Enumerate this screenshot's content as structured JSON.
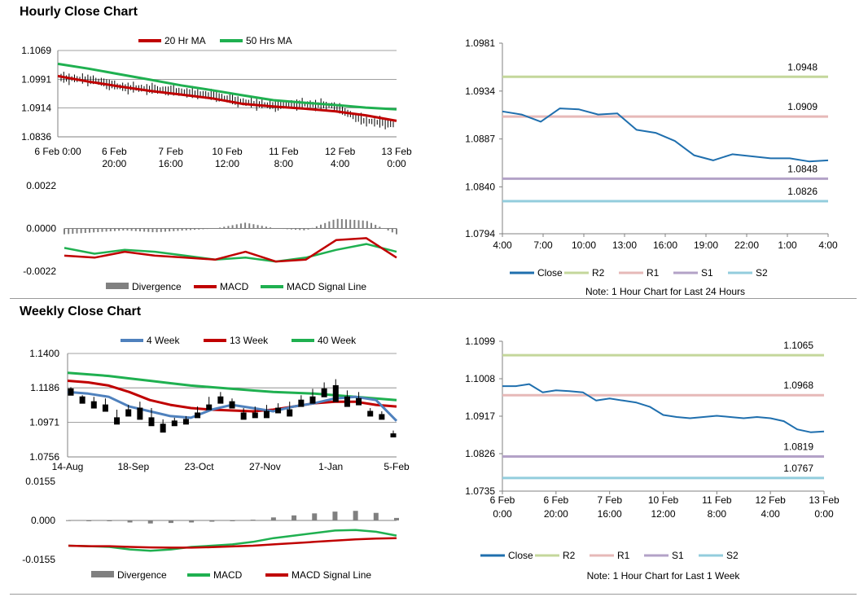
{
  "sections": {
    "hourly_title": "Hourly Close Chart",
    "weekly_title": "Weekly Close Chart"
  },
  "colors": {
    "red": "#c00000",
    "green": "#1fb050",
    "blue": "#4f81bd",
    "gray": "#808080",
    "close": "#1f6fae",
    "r2": "#c4d79b",
    "r1": "#e6b9b8",
    "s1": "#b3a2c7",
    "s2": "#93cddd"
  },
  "chart_data": [
    {
      "id": "hourly_price",
      "type": "candlestick",
      "title": "",
      "legend": [
        "20 Hr MA",
        "50 Hrs MA"
      ],
      "ylim": [
        1.0836,
        1.1069
      ],
      "yticks": [
        "1.1069",
        "1.0991",
        "1.0914",
        "1.0836"
      ],
      "xticks": [
        [
          "6 Feb 0:00"
        ],
        [
          "6 Feb",
          "20:00"
        ],
        [
          "7 Feb",
          "16:00"
        ],
        [
          "10 Feb",
          "12:00"
        ],
        [
          "11 Feb",
          "8:00"
        ],
        [
          "12 Feb",
          "4:00"
        ],
        [
          "13 Feb",
          "0:00"
        ]
      ],
      "n": 125,
      "ma20": [
        1.1,
        1.0985,
        1.0972,
        1.096,
        1.095,
        1.094,
        1.0925,
        1.0918,
        1.0912,
        1.0905,
        1.0894,
        1.0879
      ],
      "ma50": [
        1.1033,
        1.102,
        1.1005,
        1.099,
        1.0975,
        1.0962,
        1.0948,
        1.0935,
        1.0928,
        1.0922,
        1.0915,
        1.091
      ],
      "close": [
        1.0995,
        1.099,
        1.097,
        1.0965,
        1.0958,
        1.0948,
        1.093,
        1.092,
        1.0925,
        1.092,
        1.088,
        1.087
      ]
    },
    {
      "id": "hourly_macd",
      "type": "line",
      "legend": [
        "Divergence",
        "MACD",
        "MACD Signal Line"
      ],
      "ylim": [
        -0.0022,
        0.0022
      ],
      "yticks": [
        "0.0022",
        "0.0000",
        "-0.0022"
      ],
      "macd": [
        -0.0014,
        -0.0015,
        -0.0012,
        -0.0014,
        -0.0015,
        -0.0016,
        -0.0012,
        -0.0017,
        -0.0016,
        -0.0006,
        -0.0005,
        -0.0015
      ],
      "signal": [
        -0.001,
        -0.0013,
        -0.0011,
        -0.0012,
        -0.0014,
        -0.0016,
        -0.0015,
        -0.0017,
        -0.0015,
        -0.0011,
        -0.0008,
        -0.0012
      ],
      "divergence": [
        -0.0003,
        -0.0002,
        -0.0001,
        -0.0002,
        -0.0001,
        0.0,
        0.0003,
        0.0,
        -0.0001,
        0.0005,
        0.0004,
        -0.0003
      ]
    },
    {
      "id": "hourly_pivot",
      "type": "line",
      "ylim": [
        1.0794,
        1.0981
      ],
      "yticks": [
        "1.0981",
        "1.0934",
        "1.0887",
        "1.0840",
        "1.0794"
      ],
      "xticks": [
        "4:00",
        "7:00",
        "10:00",
        "13:00",
        "16:00",
        "19:00",
        "22:00",
        "1:00",
        "4:00"
      ],
      "close": [
        1.0914,
        1.0911,
        1.0904,
        1.0917,
        1.0916,
        1.0911,
        1.0912,
        1.0896,
        1.0893,
        1.0885,
        1.0871,
        1.0866,
        1.0872,
        1.087,
        1.0868,
        1.0868,
        1.0865,
        1.0866
      ],
      "levels": {
        "R2": 1.0948,
        "R1": 1.0909,
        "S1": 1.0848,
        "S2": 1.0826
      },
      "level_labels": {
        "R2": "1.0948",
        "R1": "1.0909",
        "S1": "1.0848",
        "S2": "1.0826"
      },
      "legend": [
        "Close",
        "R2",
        "R1",
        "S1",
        "S2"
      ],
      "note": "Note: 1 Hour Chart for Last 24 Hours"
    },
    {
      "id": "weekly_price",
      "type": "candlestick",
      "legend": [
        "4 Week",
        "13 Week",
        "40 Week"
      ],
      "ylim": [
        1.0756,
        1.14
      ],
      "yticks": [
        "1.1400",
        "1.1186",
        "1.0971",
        "1.0756"
      ],
      "xticks": [
        "14-Aug",
        "18-Sep",
        "23-Oct",
        "27-Nov",
        "1-Jan",
        "5-Feb"
      ],
      "candles": [
        [
          1.118,
          1.119,
          1.115,
          1.114
        ],
        [
          1.113,
          1.114,
          1.11,
          1.109
        ],
        [
          1.11,
          1.113,
          1.108,
          1.106
        ],
        [
          1.108,
          1.112,
          1.106,
          1.104
        ],
        [
          1.1,
          1.105,
          1.098,
          1.096
        ],
        [
          1.105,
          1.108,
          1.103,
          1.101
        ],
        [
          1.106,
          1.11,
          1.101,
          1.099
        ],
        [
          1.1,
          1.106,
          1.097,
          1.095
        ],
        [
          1.096,
          1.099,
          1.093,
          1.091
        ],
        [
          1.098,
          1.1,
          1.096,
          1.095
        ],
        [
          1.099,
          1.101,
          1.097,
          1.096
        ],
        [
          1.103,
          1.107,
          1.101,
          1.1
        ],
        [
          1.108,
          1.113,
          1.106,
          1.105
        ],
        [
          1.113,
          1.116,
          1.11,
          1.109
        ],
        [
          1.11,
          1.112,
          1.107,
          1.106
        ],
        [
          1.103,
          1.106,
          1.1,
          1.099
        ],
        [
          1.103,
          1.107,
          1.101,
          1.1
        ],
        [
          1.104,
          1.108,
          1.101,
          1.1
        ],
        [
          1.106,
          1.109,
          1.104,
          1.103
        ],
        [
          1.105,
          1.11,
          1.102,
          1.101
        ],
        [
          1.111,
          1.114,
          1.108,
          1.107
        ],
        [
          1.113,
          1.118,
          1.11,
          1.109
        ],
        [
          1.118,
          1.122,
          1.114,
          1.113
        ],
        [
          1.12,
          1.124,
          1.113,
          1.11
        ],
        [
          1.113,
          1.117,
          1.108,
          1.107
        ],
        [
          1.112,
          1.116,
          1.109,
          1.108
        ],
        [
          1.104,
          1.106,
          1.102,
          1.101
        ],
        [
          1.102,
          1.104,
          1.1,
          1.099
        ],
        [
          1.09,
          1.092,
          1.089,
          1.088
        ]
      ],
      "ma4": [
        1.116,
        1.115,
        1.113,
        1.107,
        1.104,
        1.101,
        1.1,
        1.105,
        1.108,
        1.106,
        1.104,
        1.107,
        1.109,
        1.112,
        1.113,
        1.111,
        1.098
      ],
      "ma13": [
        1.123,
        1.122,
        1.12,
        1.116,
        1.111,
        1.108,
        1.106,
        1.105,
        1.1045,
        1.104,
        1.105,
        1.107,
        1.109,
        1.11,
        1.11,
        1.108,
        1.107
      ],
      "ma40": [
        1.128,
        1.127,
        1.126,
        1.1245,
        1.123,
        1.1215,
        1.12,
        1.119,
        1.118,
        1.117,
        1.116,
        1.1155,
        1.115,
        1.114,
        1.113,
        1.112,
        1.111
      ]
    },
    {
      "id": "weekly_macd",
      "type": "line",
      "legend": [
        "Divergence",
        "MACD",
        "MACD Signal Line"
      ],
      "ylim": [
        -0.0155,
        0.0155
      ],
      "yticks": [
        "0.0155",
        "0.000",
        "-0.0155"
      ],
      "macd": [
        -0.01,
        -0.0102,
        -0.0105,
        -0.0115,
        -0.012,
        -0.0115,
        -0.0105,
        -0.01,
        -0.0095,
        -0.0085,
        -0.007,
        -0.006,
        -0.005,
        -0.004,
        -0.0038,
        -0.0045,
        -0.006
      ],
      "signal": [
        -0.01,
        -0.0102,
        -0.0102,
        -0.0105,
        -0.0107,
        -0.0108,
        -0.0108,
        -0.0106,
        -0.0103,
        -0.01,
        -0.0095,
        -0.009,
        -0.0085,
        -0.008,
        -0.0075,
        -0.0072,
        -0.007
      ],
      "divergence": [
        0.0001,
        0.0,
        -0.0003,
        -0.0008,
        -0.0012,
        -0.001,
        -0.0008,
        -0.0005,
        -0.0002,
        0.0003,
        0.0012,
        0.002,
        0.0028,
        0.0035,
        0.0038,
        0.003,
        0.001
      ]
    },
    {
      "id": "weekly_pivot",
      "type": "line",
      "ylim": [
        1.0735,
        1.1099
      ],
      "yticks": [
        "1.1099",
        "1.1008",
        "1.0917",
        "1.0826",
        "1.0735"
      ],
      "xticks": [
        [
          "6 Feb",
          "0:00"
        ],
        [
          "6 Feb",
          "20:00"
        ],
        [
          "7 Feb",
          "16:00"
        ],
        [
          "10 Feb",
          "12:00"
        ],
        [
          "11 Feb",
          "8:00"
        ],
        [
          "12 Feb",
          "4:00"
        ],
        [
          "13 Feb",
          "0:00"
        ]
      ],
      "close": [
        1.099,
        1.099,
        1.0995,
        1.0975,
        1.098,
        1.0978,
        1.0975,
        1.0955,
        1.096,
        1.0955,
        1.095,
        1.094,
        1.092,
        1.0915,
        1.0912,
        1.0915,
        1.0918,
        1.0915,
        1.0912,
        1.0915,
        1.0912,
        1.0905,
        1.0885,
        1.0878,
        1.088
      ],
      "levels": {
        "R2": 1.1065,
        "R1": 1.0968,
        "S1": 1.0819,
        "S2": 1.0767
      },
      "level_labels": {
        "R2": "1.1065",
        "R1": "1.0968",
        "S1": "1.0819",
        "S2": "1.0767"
      },
      "legend": [
        "Close",
        "R2",
        "R1",
        "S1",
        "S2"
      ],
      "note": "Note: 1 Hour Chart for Last 1 Week"
    }
  ]
}
